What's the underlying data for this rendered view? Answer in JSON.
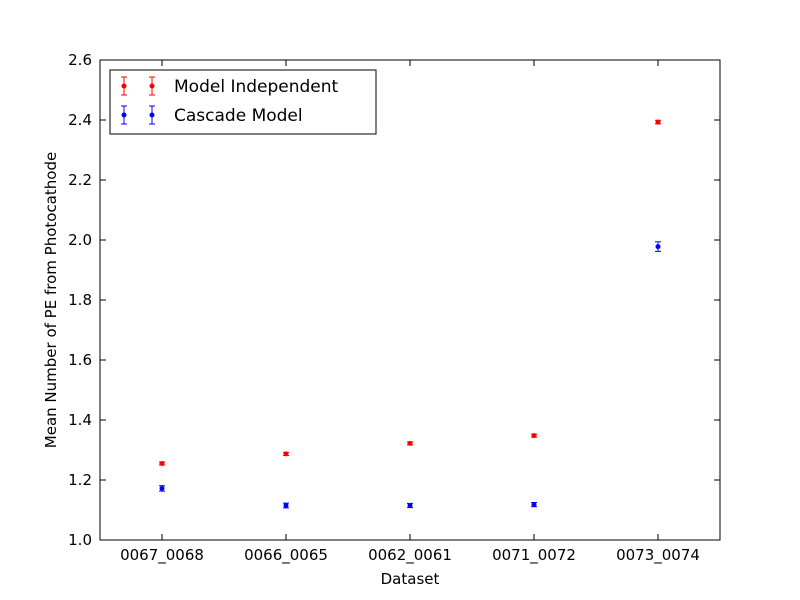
{
  "chart_data": {
    "type": "scatter",
    "title": "",
    "xlabel": "Dataset",
    "ylabel": "Mean Number of PE from Photocathode",
    "categories": [
      "0067_0068",
      "0066_0065",
      "0062_0061",
      "0071_0072",
      "0073_0074"
    ],
    "ylim": [
      1.0,
      2.6
    ],
    "yticks": [
      "1.0",
      "1.2",
      "1.4",
      "1.6",
      "1.8",
      "2.0",
      "2.2",
      "2.4",
      "2.6"
    ],
    "grid": false,
    "legend_position": "top-left",
    "series": [
      {
        "name": "Model Independent",
        "color": "#ff0000",
        "values": [
          1.255,
          1.287,
          1.322,
          1.348,
          2.393
        ],
        "errors": [
          0.005,
          0.005,
          0.005,
          0.005,
          0.006
        ]
      },
      {
        "name": "Cascade Model",
        "color": "#0000ff",
        "values": [
          1.172,
          1.115,
          1.115,
          1.118,
          1.978
        ],
        "errors": [
          0.009,
          0.008,
          0.007,
          0.007,
          0.016
        ]
      }
    ]
  }
}
